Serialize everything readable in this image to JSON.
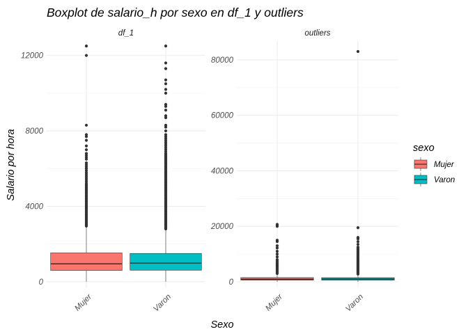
{
  "chart_data": {
    "type": "boxplot",
    "title": "Boxplot de salario_h por sexo en df_1 y outliers",
    "xlabel": "Sexo",
    "ylabel": "Salario por hora",
    "categories": [
      "Mujer",
      "Varon"
    ],
    "legend": {
      "title": "sexo",
      "position": "right",
      "entries": [
        "Mujer",
        "Varon"
      ]
    },
    "colors": {
      "Mujer": "#F8766D",
      "Varon": "#00BFC4"
    },
    "grid": true,
    "panels": [
      {
        "name": "df_1",
        "ylim": [
          -300,
          12800
        ],
        "yticks": [
          0,
          4000,
          8000,
          12000
        ],
        "tick_labels": [
          "0",
          "4000",
          "8000",
          "12000"
        ],
        "boxes": [
          {
            "group": "Mujer",
            "whisker_low": 0,
            "q1": 600,
            "median": 950,
            "q3": 1530,
            "whisker_high": 2900,
            "outliers": [
              2950,
              3000,
              3050,
              3100,
              3150,
              3200,
              3250,
              3300,
              3350,
              3400,
              3450,
              3500,
              3550,
              3600,
              3650,
              3700,
              3750,
              3800,
              3850,
              3900,
              3950,
              4000,
              4050,
              4100,
              4150,
              4200,
              4250,
              4300,
              4350,
              4400,
              4450,
              4500,
              4550,
              4600,
              4650,
              4700,
              4750,
              4800,
              4850,
              4900,
              4950,
              5000,
              5050,
              5100,
              5150,
              5200,
              5300,
              5400,
              5500,
              5600,
              5700,
              5800,
              5900,
              6000,
              6100,
              6200,
              6300,
              6500,
              6600,
              6700,
              6800,
              7000,
              7200,
              7500,
              7700,
              7800,
              8300,
              12000,
              12500
            ]
          },
          {
            "group": "Varon",
            "whisker_low": 0,
            "q1": 610,
            "median": 990,
            "q3": 1500,
            "whisker_high": 2750,
            "outliers": [
              2800,
              2850,
              2900,
              2950,
              3000,
              3050,
              3100,
              3150,
              3200,
              3250,
              3300,
              3350,
              3400,
              3450,
              3500,
              3550,
              3600,
              3650,
              3700,
              3750,
              3800,
              3850,
              3900,
              3950,
              4000,
              4050,
              4100,
              4150,
              4200,
              4250,
              4300,
              4350,
              4400,
              4450,
              4500,
              4550,
              4600,
              4650,
              4700,
              4750,
              4800,
              4850,
              4900,
              4950,
              5000,
              5050,
              5100,
              5150,
              5200,
              5250,
              5300,
              5350,
              5400,
              5450,
              5500,
              5550,
              5600,
              5650,
              5700,
              5750,
              5800,
              5850,
              5900,
              5950,
              6000,
              6050,
              6100,
              6150,
              6200,
              6250,
              6300,
              6350,
              6400,
              6450,
              6500,
              6550,
              6600,
              6650,
              6700,
              6750,
              6800,
              6900,
              7000,
              7100,
              7200,
              7300,
              7400,
              7500,
              7600,
              7700,
              7800,
              8000,
              8200,
              8300,
              8700,
              8800,
              9100,
              9300,
              9400,
              10000,
              10200,
              10500,
              10700,
              11300,
              11600,
              12500
            ]
          }
        ]
      },
      {
        "name": "outliers",
        "ylim": [
          -2000,
          87000
        ],
        "yticks": [
          0,
          20000,
          40000,
          60000,
          80000
        ],
        "tick_labels": [
          "0",
          "20000",
          "40000",
          "60000",
          "80000"
        ],
        "boxes": [
          {
            "group": "Mujer",
            "whisker_low": 0,
            "q1": 600,
            "median": 950,
            "q3": 1530,
            "whisker_high": 2900,
            "outliers": [
              3000,
              3300,
              3600,
              3900,
              4200,
              4500,
              4800,
              5100,
              5400,
              5700,
              6000,
              6300,
              6600,
              7000,
              7500,
              8000,
              9000,
              10000,
              11000,
              12200,
              13000,
              14500,
              15000,
              20000,
              20300,
              20500,
              20700
            ]
          },
          {
            "group": "Varon",
            "whisker_low": 0,
            "q1": 610,
            "median": 990,
            "q3": 1500,
            "whisker_high": 2750,
            "outliers": [
              2800,
              3000,
              3200,
              3400,
              3600,
              3800,
              4000,
              4200,
              4400,
              4600,
              4800,
              5000,
              5200,
              5400,
              5600,
              5800,
              6000,
              6200,
              6400,
              6600,
              6800,
              7000,
              7200,
              7400,
              7600,
              7800,
              8000,
              8200,
              8500,
              8800,
              9100,
              9400,
              9700,
              10000,
              10300,
              10600,
              11000,
              11300,
              11600,
              11900,
              12200,
              12500,
              13500,
              14500,
              15500,
              16000,
              19500,
              83000
            ]
          }
        ]
      }
    ]
  }
}
